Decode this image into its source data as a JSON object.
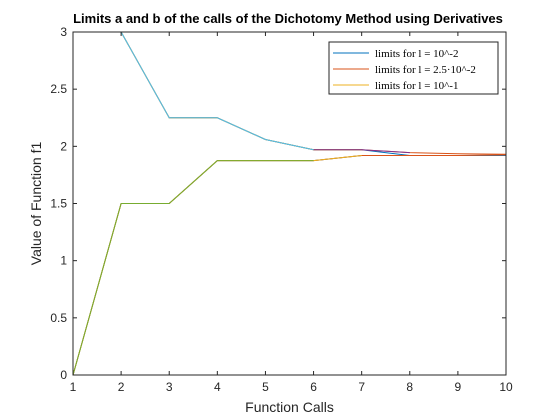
{
  "chart_data": {
    "type": "line",
    "title": "Limits a and b of the calls of the Dichotomy Method using Derivatives",
    "xlabel": "Function Calls",
    "ylabel": "Value of Function f1",
    "xlim": [
      1,
      10
    ],
    "ylim": [
      0,
      3
    ],
    "x_ticks": [
      "1",
      "2",
      "3",
      "4",
      "5",
      "6",
      "7",
      "8",
      "9",
      "10"
    ],
    "y_ticks": [
      "0",
      "0.5",
      "1",
      "1.5",
      "2",
      "2.5",
      "3"
    ],
    "grid": false,
    "legend_position": "top-right",
    "legend": [
      {
        "label": "limits for l = 10^-2",
        "color": "#0072BD"
      },
      {
        "label": "limits for l = 2.5·10^-2",
        "color": "#D95319"
      },
      {
        "label": "limits for l = 10^-1",
        "color": "#EDB120"
      }
    ],
    "series": [
      {
        "legend_index": 0,
        "color": "#0072BD",
        "x": [
          1,
          2,
          3,
          4,
          5,
          6,
          7,
          8,
          9,
          10
        ],
        "y": [
          3,
          3,
          2.25,
          2.25,
          2.06,
          1.97,
          1.97,
          1.92,
          1.92,
          1.92
        ]
      },
      {
        "legend_index": 0,
        "color": "#0072BD",
        "x": [
          1,
          2,
          3,
          4,
          5,
          6,
          7,
          8,
          9,
          10
        ],
        "y": [
          0,
          1.5,
          1.5,
          1.875,
          1.875,
          1.875,
          1.92,
          1.92,
          1.92,
          1.92
        ]
      },
      {
        "legend_index": 1,
        "color": "#D95319",
        "x": [
          1,
          2,
          3,
          4,
          5,
          6,
          7,
          8,
          9,
          10
        ],
        "y": [
          3,
          3,
          2.25,
          2.25,
          2.06,
          1.97,
          1.97,
          1.945,
          1.935,
          1.93
        ]
      },
      {
        "legend_index": 1,
        "color": "#D95319",
        "x": [
          1,
          2,
          3,
          4,
          5,
          6,
          7,
          8,
          9,
          10
        ],
        "y": [
          0,
          1.5,
          1.5,
          1.875,
          1.875,
          1.875,
          1.92,
          1.92,
          1.92,
          1.925
        ]
      },
      {
        "legend_index": 2,
        "color": "#EDB120",
        "x": [
          1,
          2,
          3,
          4,
          5,
          6,
          7
        ],
        "y": [
          3,
          3,
          2.25,
          2.25,
          2.06,
          1.97,
          1.97
        ]
      },
      {
        "legend_index": 2,
        "color": "#EDB120",
        "x": [
          1,
          2,
          3,
          4,
          5,
          6,
          7
        ],
        "y": [
          0,
          1.5,
          1.5,
          1.875,
          1.875,
          1.875,
          1.92
        ]
      },
      {
        "legend_index": -1,
        "color": "#4DBEEE",
        "x": [
          1,
          2,
          3,
          4,
          5,
          6
        ],
        "y": [
          3,
          3,
          2.25,
          2.25,
          2.06,
          1.97
        ]
      },
      {
        "legend_index": -1,
        "color": "#77AC30",
        "x": [
          1,
          2,
          3,
          4,
          5,
          6
        ],
        "y": [
          0,
          1.5,
          1.5,
          1.875,
          1.875,
          1.875
        ]
      },
      {
        "legend_index": -1,
        "color": "#7E2F8E",
        "x": [
          6,
          7,
          8
        ],
        "y": [
          1.97,
          1.97,
          1.945
        ]
      }
    ]
  }
}
